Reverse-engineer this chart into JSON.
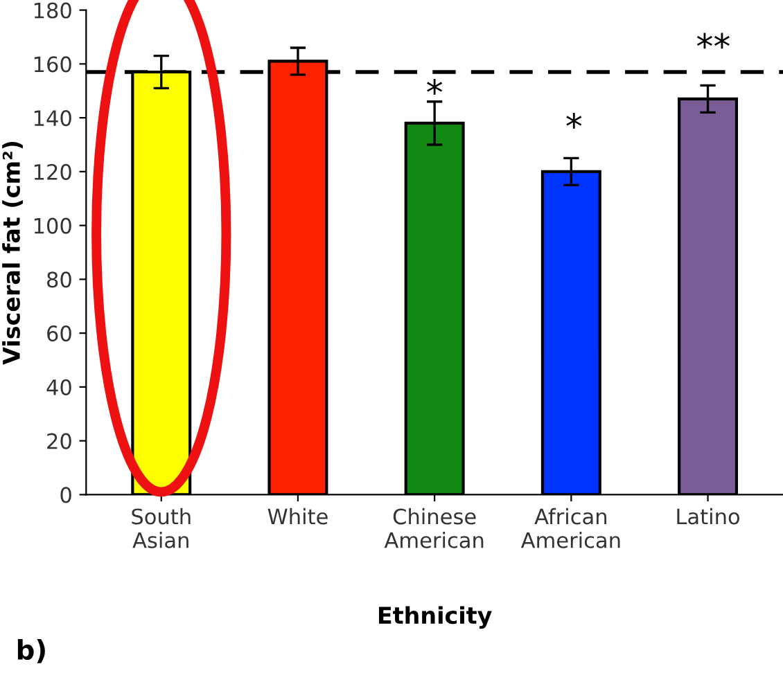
{
  "chart_data": {
    "type": "bar",
    "xlabel": "Ethnicity",
    "ylabel": "Visceral fat (cm²)",
    "categories": [
      "South\nAsian",
      "White",
      "Chinese\nAmerican",
      "African\nAmerican",
      "Latino"
    ],
    "values": [
      157,
      161,
      138,
      120,
      147
    ],
    "colors": [
      "#ffff00",
      "#ff2200",
      "#118811",
      "#0033ff",
      "#7a5c96"
    ],
    "errors": [
      6,
      5,
      8,
      5,
      5
    ],
    "ylim": [
      0,
      180
    ],
    "yticks": [
      0,
      20,
      40,
      60,
      80,
      100,
      120,
      140,
      160,
      180
    ],
    "ref_lines": [
      {
        "axis": "y",
        "value": 157,
        "line_style": "dashed",
        "color": "#000000"
      }
    ],
    "annotations": [
      "*",
      "*",
      "**",
      "b)"
    ],
    "grid": false
  }
}
